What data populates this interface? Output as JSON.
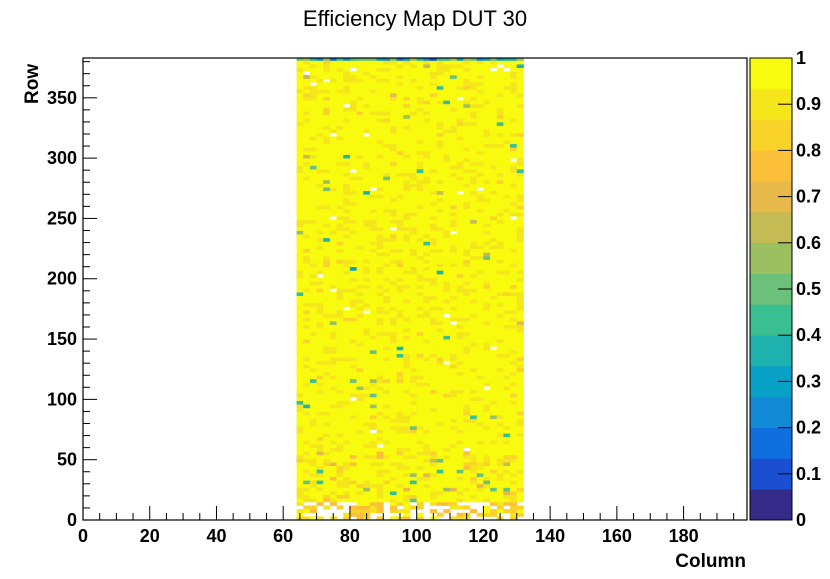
{
  "chart_data": {
    "type": "heatmap",
    "title": "Efficiency Map DUT 30",
    "xlabel": "Column",
    "ylabel": "Row",
    "xlim": [
      0,
      199
    ],
    "ylim": [
      0,
      383
    ],
    "x_ticks": [
      0,
      20,
      40,
      60,
      80,
      100,
      120,
      140,
      160,
      180
    ],
    "y_ticks": [
      0,
      50,
      100,
      150,
      200,
      250,
      300,
      350
    ],
    "filled_columns": [
      64,
      132
    ],
    "filled_rows": [
      0,
      383
    ],
    "colorbar": {
      "range": [
        0,
        1
      ],
      "ticks": [
        0,
        0.1,
        0.2,
        0.3,
        0.4,
        0.5,
        0.6,
        0.7,
        0.8,
        0.9,
        1
      ],
      "tick_labels": [
        "0",
        "0.1",
        "0.2",
        "0.3",
        "0.4",
        "0.5",
        "0.6",
        "0.7",
        "0.8",
        "0.9",
        "1"
      ],
      "palette": [
        "#352a87",
        "#1a4fd1",
        "#0f6fde",
        "#138ad6",
        "#08a0c6",
        "#1fb1ad",
        "#3abf93",
        "#6cc17a",
        "#9cbf62",
        "#c4bb55",
        "#e6b94a",
        "#fbbf3a",
        "#f9d22a",
        "#f5e61c",
        "#f9fb0e"
      ]
    },
    "efficiency_profile": [
      {
        "rows": [
          0,
          15
        ],
        "typical_efficiency": 0.9,
        "note_level": "sparse"
      },
      {
        "rows": [
          15,
          55
        ],
        "typical_efficiency": 0.93,
        "min_efficiency": 0.4
      },
      {
        "rows": [
          55,
          380
        ],
        "typical_efficiency": 0.97
      },
      {
        "rows": [
          380,
          383
        ],
        "typical_efficiency": 0.3
      }
    ]
  }
}
